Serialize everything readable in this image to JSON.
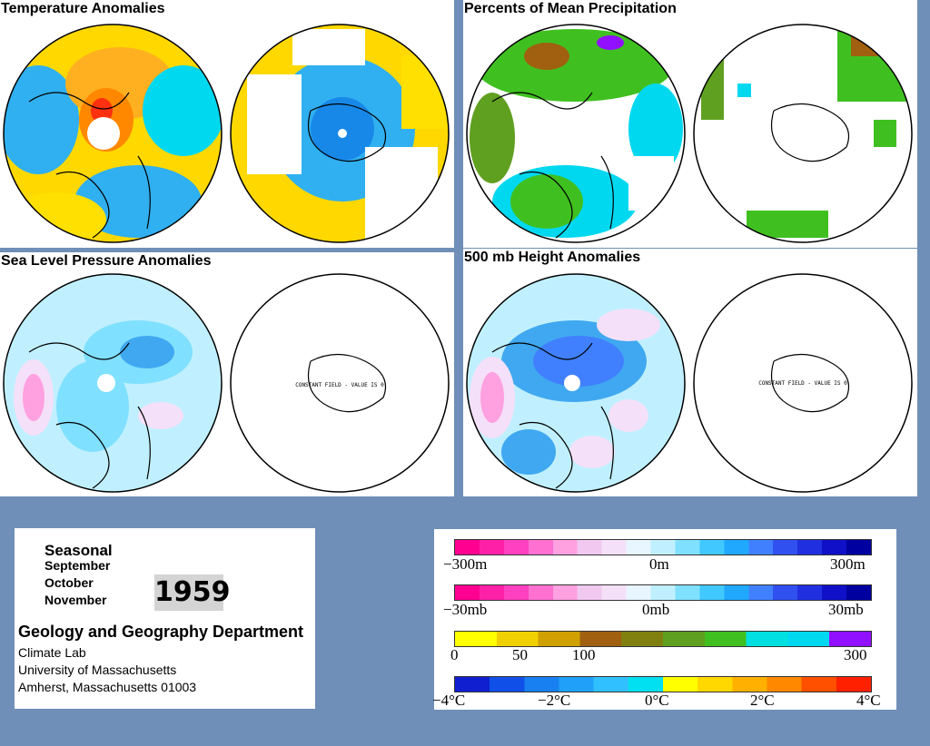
{
  "panels": {
    "temp": {
      "title": "Temperature Anomalies"
    },
    "precip": {
      "title": "Percents of Mean Precipitation"
    },
    "slp": {
      "title": "Sea Level Pressure Anomalies",
      "note": "CONSTANT FIELD - VALUE IS 0"
    },
    "height": {
      "title": "500 mb Height Anomalies",
      "note": "CONSTANT FIELD - VALUE IS 0"
    }
  },
  "info": {
    "season": "Seasonal",
    "months": [
      "September",
      "October",
      "November"
    ],
    "year": "1959",
    "department": "Geology and Geography Department",
    "address": [
      "Climate Lab",
      "University of Massachusetts",
      "Amherst, Massachusetts 01003"
    ]
  },
  "legend": {
    "height": {
      "labels": [
        "−300m",
        "0m",
        "300m"
      ],
      "colors": [
        "#ff0090",
        "#ff20a8",
        "#ff40c0",
        "#ff70d0",
        "#ffa0e0",
        "#f0c8f0",
        "#f4e0f8",
        "#e8f6ff",
        "#c0f0ff",
        "#80e0ff",
        "#40c8ff",
        "#20a8ff",
        "#4080ff",
        "#3050f0",
        "#2030e0",
        "#1010c8",
        "#0000a0"
      ]
    },
    "pressure": {
      "labels": [
        "−30mb",
        "0mb",
        "30mb"
      ],
      "colors": [
        "#ff0090",
        "#ff20a8",
        "#ff40c0",
        "#ff70d0",
        "#ffa0e0",
        "#f0c8f0",
        "#f4e0f8",
        "#e8f6ff",
        "#c0f0ff",
        "#80e0ff",
        "#40c8ff",
        "#20a8ff",
        "#4080ff",
        "#3050f0",
        "#2030e0",
        "#1010c8",
        "#0000a0"
      ]
    },
    "precip": {
      "labels": [
        "0",
        "50",
        "100",
        "300"
      ],
      "colors": [
        "#ffff00",
        "#f0d000",
        "#d0a000",
        "#a06010",
        "#808010",
        "#60a020",
        "#40c020",
        "#00e0e0",
        "#00d8f0",
        "#9010ff"
      ]
    },
    "temperature": {
      "labels": [
        "−4°C",
        "−2°C",
        "0°C",
        "2°C",
        "4°C"
      ],
      "colors": [
        "#1020d0",
        "#1050e8",
        "#1880f0",
        "#20a0f8",
        "#30c0ff",
        "#00e0f0",
        "#ffff00",
        "#ffd800",
        "#ffb000",
        "#ff8800",
        "#ff5000",
        "#ff2000"
      ]
    }
  }
}
